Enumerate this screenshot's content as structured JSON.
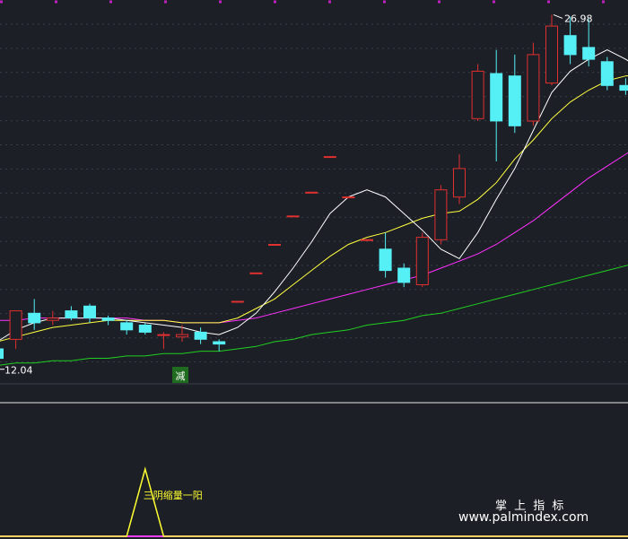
{
  "chart_data": [
    {
      "type": "candlestick",
      "panel": "price",
      "labels": {
        "high": "26.98",
        "low": "12.04",
        "signal": "减"
      },
      "ylim": [
        11.5,
        27.6
      ],
      "colors": {
        "up": "#e03030",
        "down": "#55f0f5",
        "ma5": "#ffffff",
        "ma10": "#ffff40",
        "ma20": "#ff30ff",
        "ma60": "#20d020",
        "signal_bg": "#1f6b1f",
        "signal_text": "#ffffff"
      },
      "candles": [
        {
          "o": 12.9,
          "c": 12.5,
          "h": 13.4,
          "l": 12.04
        },
        {
          "o": 13.3,
          "c": 14.5,
          "h": 14.5,
          "l": 12.9
        },
        {
          "o": 14.4,
          "c": 14.0,
          "h": 15.0,
          "l": 13.7
        },
        {
          "o": 14.1,
          "c": 14.2,
          "h": 14.5,
          "l": 13.9
        },
        {
          "o": 14.5,
          "c": 14.2,
          "h": 14.7,
          "l": 14.1
        },
        {
          "o": 14.7,
          "c": 14.2,
          "h": 14.8,
          "l": 14.0
        },
        {
          "o": 14.2,
          "c": 14.1,
          "h": 14.3,
          "l": 13.9
        },
        {
          "o": 14.0,
          "c": 13.7,
          "h": 14.1,
          "l": 13.5
        },
        {
          "o": 13.9,
          "c": 13.6,
          "h": 14.0,
          "l": 13.5
        },
        {
          "o": 13.5,
          "c": 13.5,
          "h": 13.6,
          "l": 12.9
        },
        {
          "o": 13.4,
          "c": 13.5,
          "h": 13.9,
          "l": 13.2
        },
        {
          "o": 13.6,
          "c": 13.3,
          "h": 13.8,
          "l": 13.1
        },
        {
          "o": 13.2,
          "c": 13.1,
          "h": 13.3,
          "l": 12.8
        },
        {
          "o": 14.9,
          "c": 14.9,
          "h": 14.9,
          "l": 14.9
        },
        {
          "o": 16.1,
          "c": 16.1,
          "h": 16.1,
          "l": 16.1
        },
        {
          "o": 17.3,
          "c": 17.3,
          "h": 17.3,
          "l": 17.3
        },
        {
          "o": 18.5,
          "c": 18.5,
          "h": 18.5,
          "l": 18.5
        },
        {
          "o": 19.5,
          "c": 19.5,
          "h": 19.5,
          "l": 19.5
        },
        {
          "o": 21.0,
          "c": 21.0,
          "h": 21.0,
          "l": 21.0
        },
        {
          "o": 19.3,
          "c": 19.3,
          "h": 19.3,
          "l": 19.3
        },
        {
          "o": 17.5,
          "c": 17.5,
          "h": 17.5,
          "l": 17.5
        },
        {
          "o": 17.1,
          "c": 16.2,
          "h": 17.8,
          "l": 15.9
        },
        {
          "o": 16.3,
          "c": 15.7,
          "h": 16.5,
          "l": 15.5
        },
        {
          "o": 15.6,
          "c": 17.6,
          "h": 17.8,
          "l": 15.5
        },
        {
          "o": 17.5,
          "c": 19.6,
          "h": 19.8,
          "l": 17.3
        },
        {
          "o": 19.3,
          "c": 20.5,
          "h": 21.1,
          "l": 19.0
        },
        {
          "o": 22.6,
          "c": 24.6,
          "h": 24.9,
          "l": 22.5
        },
        {
          "o": 24.5,
          "c": 22.5,
          "h": 25.5,
          "l": 20.8
        },
        {
          "o": 24.4,
          "c": 22.3,
          "h": 25.3,
          "l": 22.0
        },
        {
          "o": 22.5,
          "c": 25.3,
          "h": 25.8,
          "l": 22.3
        },
        {
          "o": 24.1,
          "c": 26.5,
          "h": 26.98,
          "l": 24.0
        },
        {
          "o": 26.1,
          "c": 25.3,
          "h": 26.9,
          "l": 24.9
        },
        {
          "o": 25.6,
          "c": 25.1,
          "h": 26.8,
          "l": 24.8
        },
        {
          "o": 25.0,
          "c": 24.0,
          "h": 25.2,
          "l": 23.8
        },
        {
          "o": 24.0,
          "c": 23.8,
          "h": 24.3,
          "l": 23.6
        },
        {
          "o": 23.4,
          "c": 22.8,
          "h": 23.7,
          "l": 22.2
        }
      ],
      "ma5": [
        13.2,
        13.7,
        14.0,
        14.2,
        14.2,
        14.2,
        14.2,
        14.1,
        14.0,
        13.9,
        13.8,
        13.6,
        13.5,
        13.8,
        14.4,
        15.3,
        16.3,
        17.4,
        18.6,
        19.3,
        19.6,
        19.3,
        18.6,
        17.9,
        17.1,
        16.7,
        17.8,
        19.2,
        20.5,
        22.1,
        23.7,
        24.6,
        25.1,
        25.5,
        25.1,
        24.6
      ],
      "ma10": [
        13.2,
        13.4,
        13.6,
        13.8,
        13.9,
        14.0,
        14.1,
        14.1,
        14.1,
        14.1,
        14.0,
        14.0,
        14.0,
        14.2,
        14.6,
        15.0,
        15.6,
        16.2,
        16.8,
        17.3,
        17.6,
        17.8,
        18.1,
        18.4,
        18.6,
        18.7,
        19.2,
        19.9,
        20.9,
        21.7,
        22.6,
        23.3,
        23.8,
        24.2,
        24.4,
        24.5
      ],
      "ma20": [
        14.1,
        14.1,
        14.2,
        14.2,
        14.2,
        14.2,
        14.2,
        14.2,
        14.1,
        14.1,
        14.0,
        14.0,
        14.0,
        14.1,
        14.2,
        14.4,
        14.6,
        14.8,
        15.0,
        15.2,
        15.4,
        15.6,
        15.8,
        16.0,
        16.3,
        16.6,
        16.9,
        17.3,
        17.8,
        18.3,
        18.9,
        19.5,
        20.1,
        20.6,
        21.1,
        21.6
      ],
      "ma60": [
        12.2,
        12.3,
        12.3,
        12.4,
        12.4,
        12.5,
        12.5,
        12.6,
        12.6,
        12.7,
        12.7,
        12.8,
        12.8,
        12.9,
        13.0,
        13.2,
        13.3,
        13.5,
        13.6,
        13.7,
        13.9,
        14.0,
        14.1,
        14.3,
        14.4,
        14.6,
        14.8,
        15.0,
        15.2,
        15.4,
        15.6,
        15.8,
        16.0,
        16.2,
        16.4,
        16.6
      ]
    },
    {
      "type": "line",
      "panel": "indicator",
      "labels": {
        "signal": "三阴缩量一阳"
      },
      "ylim": [
        0,
        1
      ],
      "signal": [
        0,
        0,
        0,
        0,
        0,
        0,
        0,
        0,
        1,
        0,
        0,
        0,
        0,
        0,
        0,
        0,
        0,
        0,
        0,
        0,
        0,
        0,
        0,
        0,
        0,
        0,
        0,
        0,
        0,
        0,
        0,
        0,
        0,
        0,
        0,
        0
      ],
      "colors": {
        "line": "#ffff30",
        "label": "#ffff30",
        "base": "#ff40ff"
      }
    }
  ],
  "watermark": {
    "line1": "掌 上 指 标",
    "line2": "www.palmindex.com"
  }
}
